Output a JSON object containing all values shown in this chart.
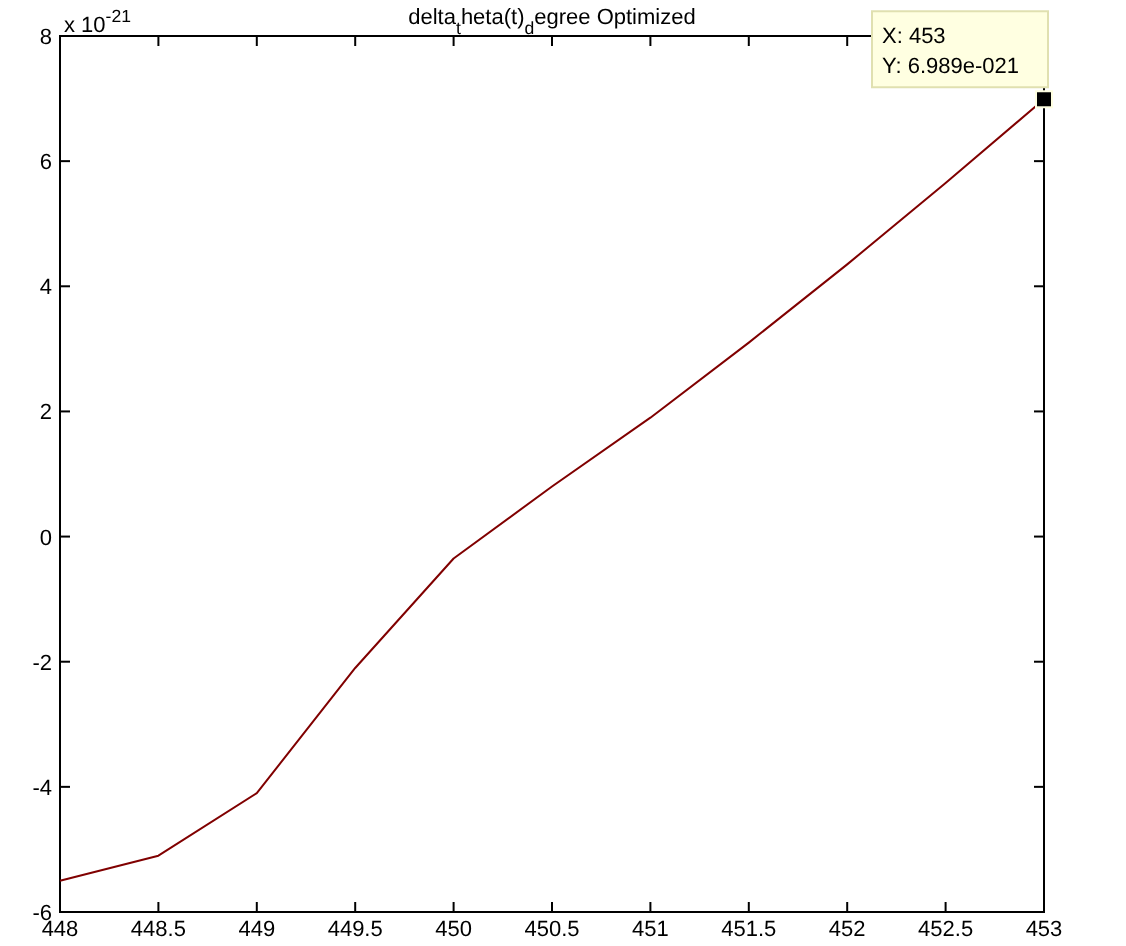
{
  "chart_data": {
    "type": "line",
    "title": "delta$_{t}$heta(t)$_{d}$egree Optimized",
    "x": [
      448,
      448.5,
      449,
      449.5,
      450,
      450.5,
      451,
      451.5,
      452,
      452.5,
      453
    ],
    "series": [
      {
        "color": "#800000",
        "values": [
          -5.5,
          -5.1,
          -4.1,
          -2.1,
          -0.35,
          0.8,
          1.9,
          3.1,
          4.35,
          5.65,
          6.989
        ]
      }
    ],
    "xlim": [
      448,
      453
    ],
    "xticks": [
      448,
      448.5,
      449,
      449.5,
      450,
      450.5,
      451,
      451.5,
      452,
      452.5,
      453
    ],
    "ylim": [
      -6,
      8
    ],
    "yticks": [
      -6,
      -4,
      -2,
      0,
      2,
      4,
      6,
      8
    ],
    "marker": "none",
    "line_style": "solid",
    "annotations": [
      "x 10$^{-21}$",
      {
        "text": "X: 453\nY: 6.989e-021",
        "x": 453,
        "y": 6.989
      }
    ]
  }
}
